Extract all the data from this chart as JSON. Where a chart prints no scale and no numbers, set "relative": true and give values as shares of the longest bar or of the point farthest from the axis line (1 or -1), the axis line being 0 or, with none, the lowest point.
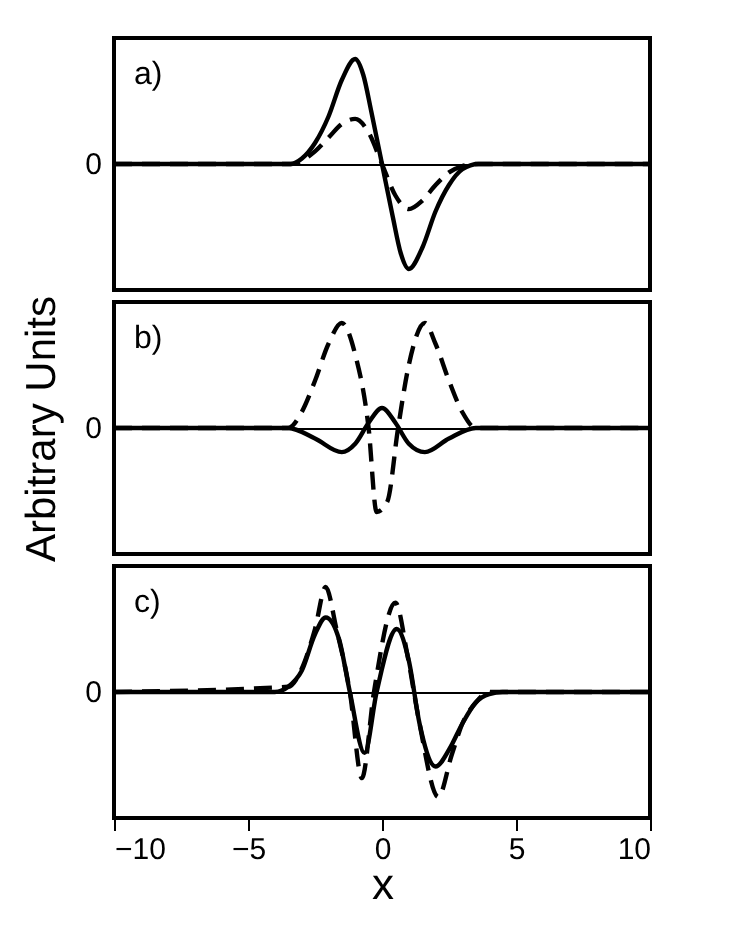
{
  "chart_data": [
    {
      "type": "line",
      "relative": true,
      "annotations": [
        "a)",
        "0"
      ],
      "xlim": [
        -10,
        10
      ],
      "tick_labels": false,
      "grid": false,
      "series": [
        {
          "color": "#000000",
          "line_style": "solid",
          "x": [
            -10,
            -4,
            -3.4,
            -3,
            -2.5,
            -2,
            -1.5,
            -1,
            -0.7,
            -0.4,
            0,
            0.4,
            0.7,
            1,
            1.5,
            2,
            2.5,
            3,
            3.6,
            10
          ],
          "values": [
            0,
            0,
            0,
            0.05,
            0.2,
            0.45,
            0.8,
            1.0,
            0.85,
            0.5,
            0,
            -0.5,
            -0.85,
            -1.0,
            -0.8,
            -0.45,
            -0.2,
            -0.05,
            0,
            0
          ]
        },
        {
          "color": "#000000",
          "line_style": "dashed",
          "x": [
            -10,
            -3.4,
            -2.5,
            -2,
            -1.5,
            -1,
            -0.5,
            0,
            0.5,
            1,
            1.5,
            2,
            2.5,
            3,
            3.5,
            10
          ],
          "values": [
            0,
            0,
            0.12,
            0.25,
            0.38,
            0.43,
            0.3,
            0,
            -0.3,
            -0.43,
            -0.35,
            -0.2,
            -0.08,
            -0.02,
            0,
            0
          ]
        }
      ]
    },
    {
      "type": "line",
      "relative": true,
      "annotations": [
        "b)",
        "0"
      ],
      "ylabel": "Arbitrary Units",
      "xlim": [
        -10,
        10
      ],
      "tick_labels": false,
      "grid": false,
      "series": [
        {
          "color": "#000000",
          "line_style": "solid",
          "x": [
            -10,
            -3.5,
            -2.5,
            -1.5,
            -1,
            -0.5,
            0,
            0.5,
            1,
            1.6,
            2.5,
            3.5,
            10
          ],
          "values": [
            0,
            0,
            -0.1,
            -0.23,
            -0.15,
            0.05,
            0.19,
            0.05,
            -0.15,
            -0.23,
            -0.1,
            0,
            0
          ]
        },
        {
          "color": "#000000",
          "line_style": "dashed",
          "x": [
            -10,
            -3.5,
            -3,
            -2.5,
            -2,
            -1.5,
            -1,
            -0.5,
            -0.2,
            0.2,
            0.6,
            1,
            1.6,
            2,
            2.5,
            3,
            3.5,
            10
          ],
          "values": [
            0,
            0,
            0.15,
            0.45,
            0.8,
            1.0,
            0.7,
            0.0,
            -0.8,
            -0.7,
            0.0,
            0.6,
            1.0,
            0.8,
            0.45,
            0.15,
            0,
            0
          ]
        }
      ]
    },
    {
      "type": "line",
      "relative": true,
      "annotations": [
        "c)",
        "0"
      ],
      "xlabel": "x",
      "xlim": [
        -10,
        10
      ],
      "xticks": [
        -10,
        -5,
        0,
        5,
        10
      ],
      "tick_labels": "x",
      "grid": false,
      "series": [
        {
          "color": "#000000",
          "line_style": "solid",
          "x": [
            -10,
            -4,
            -3.5,
            -3,
            -2.5,
            -2.1,
            -1.6,
            -1.2,
            -0.65,
            -0.2,
            0.55,
            1.0,
            1.4,
            2.0,
            2.5,
            3,
            3.5,
            4,
            4.5,
            10
          ],
          "values": [
            0,
            0,
            0.05,
            0.2,
            0.55,
            0.71,
            0.5,
            0.0,
            -0.58,
            0.0,
            0.6,
            0.3,
            -0.3,
            -0.71,
            -0.55,
            -0.3,
            -0.1,
            -0.02,
            0,
            0
          ]
        },
        {
          "color": "#000000",
          "line_style": "dashed",
          "x": [
            -10,
            -3.5,
            -3,
            -2.5,
            -2.1,
            -1.7,
            -1.2,
            -0.75,
            -0.3,
            0.5,
            0.95,
            1.4,
            2.1,
            2.6,
            3,
            3.5,
            4,
            10
          ],
          "values": [
            0,
            0.05,
            0.22,
            0.6,
            1.0,
            0.6,
            0.0,
            -0.82,
            0.0,
            0.85,
            0.35,
            -0.3,
            -1.0,
            -0.6,
            -0.3,
            -0.1,
            0,
            0
          ]
        }
      ]
    }
  ]
}
